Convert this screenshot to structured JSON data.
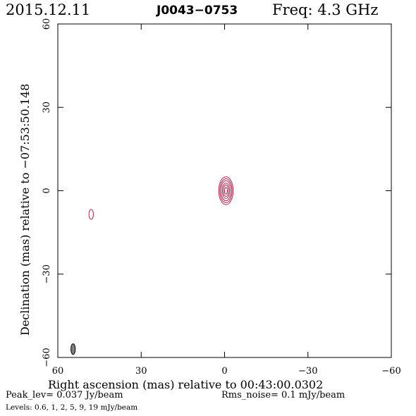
{
  "header": {
    "date": "2015.12.11",
    "source": "J0043−0753",
    "freq": "Freq: 4.3 GHz"
  },
  "footer": {
    "peak": "Peak_lev=  0.037 Jy/beam",
    "rms": "Rms_noise=  0.1 mJy/beam",
    "levels": "Levels: 0.6,   1,   2,   5,   9,   19 mJy/beam"
  },
  "colors": {
    "accent": "#b4214d",
    "frame": "#000000",
    "beam_fill": "#808080"
  },
  "chart_data": {
    "type": "contour",
    "xlabel": "Right ascension (mas) relative to 00:43:00.0302",
    "ylabel": "Declination (mas) relative to −07:53:50.148",
    "xlim": [
      60,
      -60
    ],
    "ylim": [
      -60,
      60
    ],
    "x_ticks": [
      60,
      30,
      0,
      -30,
      -60
    ],
    "y_ticks": [
      -60,
      -30,
      0,
      30,
      60
    ],
    "x_tick_labels": [
      "60",
      "30",
      "0",
      "−30",
      "−60"
    ],
    "y_tick_labels": [
      "−60",
      "−30",
      "0",
      "30",
      "60"
    ],
    "peak_jy_per_beam": 0.037,
    "rms_mjy_per_beam": 0.1,
    "levels_mjy_per_beam": [
      0.6,
      1,
      2,
      5,
      9,
      19
    ],
    "components": [
      {
        "name": "core",
        "x": -0.5,
        "y": 0,
        "contours": [
          {
            "level": 0.6,
            "rx": 2.6,
            "ry": 5.0
          },
          {
            "level": 1,
            "rx": 2.2,
            "ry": 4.3
          },
          {
            "level": 2,
            "rx": 1.8,
            "ry": 3.6
          },
          {
            "level": 5,
            "rx": 1.3,
            "ry": 2.8
          },
          {
            "level": 9,
            "rx": 0.9,
            "ry": 2.1
          },
          {
            "level": 19,
            "rx": 0.5,
            "ry": 1.2
          }
        ]
      },
      {
        "name": "noise-blob",
        "x": 48,
        "y": -8.5,
        "contours": [
          {
            "level": 0.6,
            "rx": 0.8,
            "ry": 1.8
          }
        ]
      }
    ],
    "beam": {
      "x": 54.5,
      "y": -57,
      "rx": 0.8,
      "ry": 1.9
    }
  }
}
